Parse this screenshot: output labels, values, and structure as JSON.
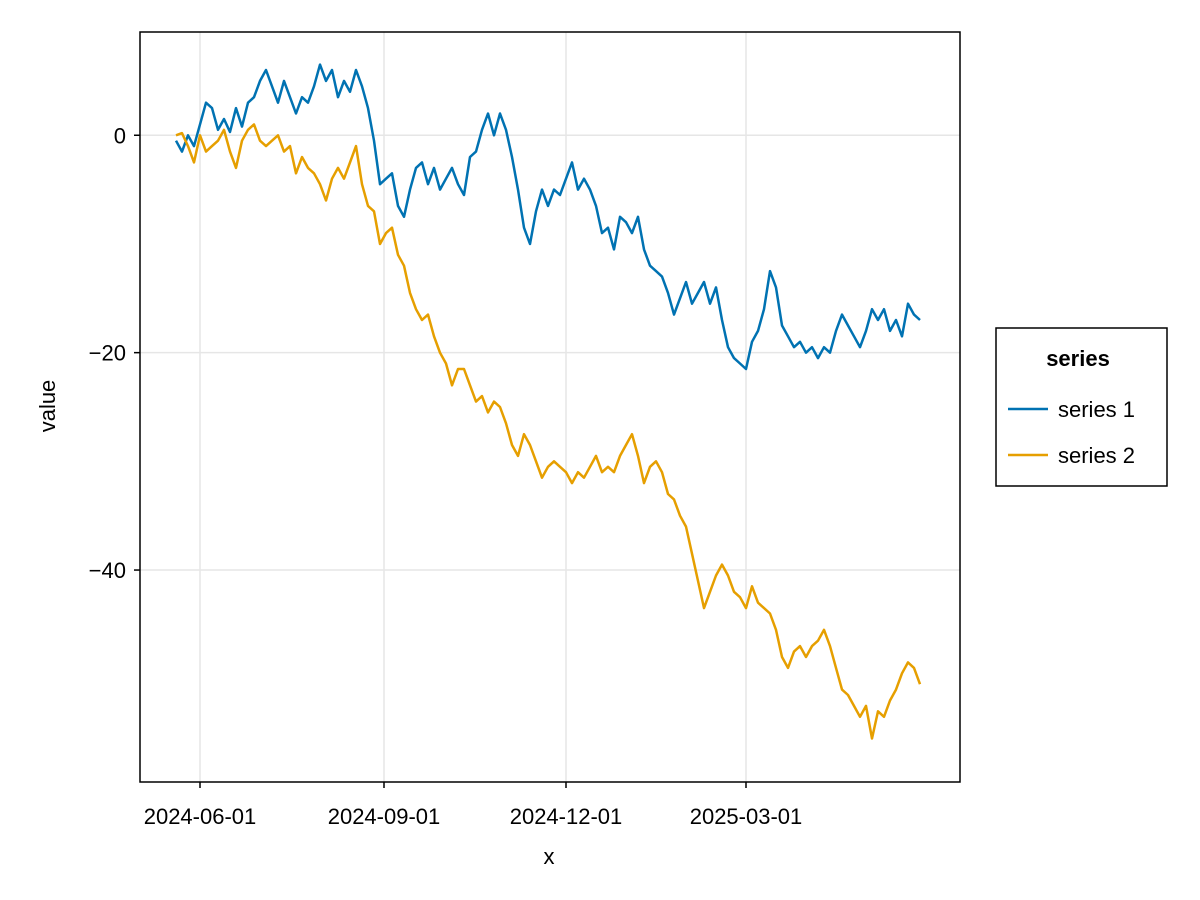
{
  "chart_data": {
    "type": "line",
    "title": "",
    "xlabel": "x",
    "ylabel": "value",
    "x_type": "date",
    "xlim": [
      "2024-05-02",
      "2025-06-16"
    ],
    "ylim": [
      -59.5,
      9.5
    ],
    "x_ticks": [
      "2024-06-01",
      "2024-09-01",
      "2024-12-01",
      "2025-03-01"
    ],
    "y_ticks": [
      0,
      -20,
      -40
    ],
    "y_tick_labels": [
      "0",
      "−20",
      "−40"
    ],
    "grid": true,
    "legend": {
      "title": "series",
      "placement": "right"
    },
    "series": [
      {
        "name": "series 1",
        "color": "#0072b2",
        "points": [
          [
            "2024-05-20",
            -0.5
          ],
          [
            "2024-05-23",
            -1.5
          ],
          [
            "2024-05-26",
            0.0
          ],
          [
            "2024-05-29",
            -1.0
          ],
          [
            "2024-06-01",
            1.0
          ],
          [
            "2024-06-04",
            3.0
          ],
          [
            "2024-06-07",
            2.5
          ],
          [
            "2024-06-10",
            0.5
          ],
          [
            "2024-06-13",
            1.5
          ],
          [
            "2024-06-16",
            0.3
          ],
          [
            "2024-06-19",
            2.5
          ],
          [
            "2024-06-22",
            0.8
          ],
          [
            "2024-06-25",
            3.0
          ],
          [
            "2024-06-28",
            3.5
          ],
          [
            "2024-07-01",
            5.0
          ],
          [
            "2024-07-04",
            6.0
          ],
          [
            "2024-07-07",
            4.5
          ],
          [
            "2024-07-10",
            3.0
          ],
          [
            "2024-07-13",
            5.0
          ],
          [
            "2024-07-16",
            3.5
          ],
          [
            "2024-07-19",
            2.0
          ],
          [
            "2024-07-22",
            3.5
          ],
          [
            "2024-07-25",
            3.0
          ],
          [
            "2024-07-28",
            4.5
          ],
          [
            "2024-07-31",
            6.5
          ],
          [
            "2024-08-03",
            5.0
          ],
          [
            "2024-08-06",
            6.0
          ],
          [
            "2024-08-09",
            3.5
          ],
          [
            "2024-08-12",
            5.0
          ],
          [
            "2024-08-15",
            4.0
          ],
          [
            "2024-08-18",
            6.0
          ],
          [
            "2024-08-21",
            4.5
          ],
          [
            "2024-08-24",
            2.5
          ],
          [
            "2024-08-27",
            -0.5
          ],
          [
            "2024-08-30",
            -4.5
          ],
          [
            "2024-09-02",
            -4.0
          ],
          [
            "2024-09-05",
            -3.5
          ],
          [
            "2024-09-08",
            -6.5
          ],
          [
            "2024-09-11",
            -7.5
          ],
          [
            "2024-09-14",
            -5.0
          ],
          [
            "2024-09-17",
            -3.0
          ],
          [
            "2024-09-20",
            -2.5
          ],
          [
            "2024-09-23",
            -4.5
          ],
          [
            "2024-09-26",
            -3.0
          ],
          [
            "2024-09-29",
            -5.0
          ],
          [
            "2024-10-02",
            -4.0
          ],
          [
            "2024-10-05",
            -3.0
          ],
          [
            "2024-10-08",
            -4.5
          ],
          [
            "2024-10-11",
            -5.5
          ],
          [
            "2024-10-14",
            -2.0
          ],
          [
            "2024-10-17",
            -1.5
          ],
          [
            "2024-10-20",
            0.5
          ],
          [
            "2024-10-23",
            2.0
          ],
          [
            "2024-10-26",
            0.0
          ],
          [
            "2024-10-29",
            2.0
          ],
          [
            "2024-11-01",
            0.5
          ],
          [
            "2024-11-04",
            -2.0
          ],
          [
            "2024-11-07",
            -5.0
          ],
          [
            "2024-11-10",
            -8.5
          ],
          [
            "2024-11-13",
            -10.0
          ],
          [
            "2024-11-16",
            -7.0
          ],
          [
            "2024-11-19",
            -5.0
          ],
          [
            "2024-11-22",
            -6.5
          ],
          [
            "2024-11-25",
            -5.0
          ],
          [
            "2024-11-28",
            -5.5
          ],
          [
            "2024-12-01",
            -4.0
          ],
          [
            "2024-12-04",
            -2.5
          ],
          [
            "2024-12-07",
            -5.0
          ],
          [
            "2024-12-10",
            -4.0
          ],
          [
            "2024-12-13",
            -5.0
          ],
          [
            "2024-12-16",
            -6.5
          ],
          [
            "2024-12-19",
            -9.0
          ],
          [
            "2024-12-22",
            -8.5
          ],
          [
            "2024-12-25",
            -10.5
          ],
          [
            "2024-12-28",
            -7.5
          ],
          [
            "2024-12-31",
            -8.0
          ],
          [
            "2025-01-03",
            -9.0
          ],
          [
            "2025-01-06",
            -7.5
          ],
          [
            "2025-01-09",
            -10.5
          ],
          [
            "2025-01-12",
            -12.0
          ],
          [
            "2025-01-15",
            -12.5
          ],
          [
            "2025-01-18",
            -13.0
          ],
          [
            "2025-01-21",
            -14.5
          ],
          [
            "2025-01-24",
            -16.5
          ],
          [
            "2025-01-27",
            -15.0
          ],
          [
            "2025-01-30",
            -13.5
          ],
          [
            "2025-02-02",
            -15.5
          ],
          [
            "2025-02-05",
            -14.5
          ],
          [
            "2025-02-08",
            -13.5
          ],
          [
            "2025-02-11",
            -15.5
          ],
          [
            "2025-02-14",
            -14.0
          ],
          [
            "2025-02-17",
            -17.0
          ],
          [
            "2025-02-20",
            -19.5
          ],
          [
            "2025-02-23",
            -20.5
          ],
          [
            "2025-02-26",
            -21.0
          ],
          [
            "2025-03-01",
            -21.5
          ],
          [
            "2025-03-04",
            -19.0
          ],
          [
            "2025-03-07",
            -18.0
          ],
          [
            "2025-03-10",
            -16.0
          ],
          [
            "2025-03-13",
            -12.5
          ],
          [
            "2025-03-16",
            -14.0
          ],
          [
            "2025-03-19",
            -17.5
          ],
          [
            "2025-03-22",
            -18.5
          ],
          [
            "2025-03-25",
            -19.5
          ],
          [
            "2025-03-28",
            -19.0
          ],
          [
            "2025-03-31",
            -20.0
          ],
          [
            "2025-04-03",
            -19.5
          ],
          [
            "2025-04-06",
            -20.5
          ],
          [
            "2025-04-09",
            -19.5
          ],
          [
            "2025-04-12",
            -20.0
          ],
          [
            "2025-04-15",
            -18.0
          ],
          [
            "2025-04-18",
            -16.5
          ],
          [
            "2025-04-21",
            -17.5
          ],
          [
            "2025-04-24",
            -18.5
          ],
          [
            "2025-04-27",
            -19.5
          ],
          [
            "2025-04-30",
            -18.0
          ],
          [
            "2025-05-03",
            -16.0
          ],
          [
            "2025-05-06",
            -17.0
          ],
          [
            "2025-05-09",
            -16.0
          ],
          [
            "2025-05-12",
            -18.0
          ],
          [
            "2025-05-15",
            -17.0
          ],
          [
            "2025-05-18",
            -18.5
          ],
          [
            "2025-05-21",
            -15.5
          ],
          [
            "2025-05-24",
            -16.5
          ],
          [
            "2025-05-27",
            -17.0
          ]
        ]
      },
      {
        "name": "series 2",
        "color": "#e69f00",
        "points": [
          [
            "2024-05-20",
            0.0
          ],
          [
            "2024-05-23",
            0.2
          ],
          [
            "2024-05-26",
            -1.0
          ],
          [
            "2024-05-29",
            -2.5
          ],
          [
            "2024-06-01",
            0.0
          ],
          [
            "2024-06-04",
            -1.5
          ],
          [
            "2024-06-07",
            -1.0
          ],
          [
            "2024-06-10",
            -0.5
          ],
          [
            "2024-06-13",
            0.5
          ],
          [
            "2024-06-16",
            -1.5
          ],
          [
            "2024-06-19",
            -3.0
          ],
          [
            "2024-06-22",
            -0.5
          ],
          [
            "2024-06-25",
            0.5
          ],
          [
            "2024-06-28",
            1.0
          ],
          [
            "2024-07-01",
            -0.5
          ],
          [
            "2024-07-04",
            -1.0
          ],
          [
            "2024-07-07",
            -0.5
          ],
          [
            "2024-07-10",
            0.0
          ],
          [
            "2024-07-13",
            -1.5
          ],
          [
            "2024-07-16",
            -1.0
          ],
          [
            "2024-07-19",
            -3.5
          ],
          [
            "2024-07-22",
            -2.0
          ],
          [
            "2024-07-25",
            -3.0
          ],
          [
            "2024-07-28",
            -3.5
          ],
          [
            "2024-07-31",
            -4.5
          ],
          [
            "2024-08-03",
            -6.0
          ],
          [
            "2024-08-06",
            -4.0
          ],
          [
            "2024-08-09",
            -3.0
          ],
          [
            "2024-08-12",
            -4.0
          ],
          [
            "2024-08-15",
            -2.5
          ],
          [
            "2024-08-18",
            -1.0
          ],
          [
            "2024-08-21",
            -4.5
          ],
          [
            "2024-08-24",
            -6.5
          ],
          [
            "2024-08-27",
            -7.0
          ],
          [
            "2024-08-30",
            -10.0
          ],
          [
            "2024-09-02",
            -9.0
          ],
          [
            "2024-09-05",
            -8.5
          ],
          [
            "2024-09-08",
            -11.0
          ],
          [
            "2024-09-11",
            -12.0
          ],
          [
            "2024-09-14",
            -14.5
          ],
          [
            "2024-09-17",
            -16.0
          ],
          [
            "2024-09-20",
            -17.0
          ],
          [
            "2024-09-23",
            -16.5
          ],
          [
            "2024-09-26",
            -18.5
          ],
          [
            "2024-09-29",
            -20.0
          ],
          [
            "2024-10-02",
            -21.0
          ],
          [
            "2024-10-05",
            -23.0
          ],
          [
            "2024-10-08",
            -21.5
          ],
          [
            "2024-10-11",
            -21.5
          ],
          [
            "2024-10-14",
            -23.0
          ],
          [
            "2024-10-17",
            -24.5
          ],
          [
            "2024-10-20",
            -24.0
          ],
          [
            "2024-10-23",
            -25.5
          ],
          [
            "2024-10-26",
            -24.5
          ],
          [
            "2024-10-29",
            -25.0
          ],
          [
            "2024-11-01",
            -26.5
          ],
          [
            "2024-11-04",
            -28.5
          ],
          [
            "2024-11-07",
            -29.5
          ],
          [
            "2024-11-10",
            -27.5
          ],
          [
            "2024-11-13",
            -28.5
          ],
          [
            "2024-11-16",
            -30.0
          ],
          [
            "2024-11-19",
            -31.5
          ],
          [
            "2024-11-22",
            -30.5
          ],
          [
            "2024-11-25",
            -30.0
          ],
          [
            "2024-11-28",
            -30.5
          ],
          [
            "2024-12-01",
            -31.0
          ],
          [
            "2024-12-04",
            -32.0
          ],
          [
            "2024-12-07",
            -31.0
          ],
          [
            "2024-12-10",
            -31.5
          ],
          [
            "2024-12-13",
            -30.5
          ],
          [
            "2024-12-16",
            -29.5
          ],
          [
            "2024-12-19",
            -31.0
          ],
          [
            "2024-12-22",
            -30.5
          ],
          [
            "2024-12-25",
            -31.0
          ],
          [
            "2024-12-28",
            -29.5
          ],
          [
            "2024-12-31",
            -28.5
          ],
          [
            "2025-01-03",
            -27.5
          ],
          [
            "2025-01-06",
            -29.5
          ],
          [
            "2025-01-09",
            -32.0
          ],
          [
            "2025-01-12",
            -30.5
          ],
          [
            "2025-01-15",
            -30.0
          ],
          [
            "2025-01-18",
            -31.0
          ],
          [
            "2025-01-21",
            -33.0
          ],
          [
            "2025-01-24",
            -33.5
          ],
          [
            "2025-01-27",
            -35.0
          ],
          [
            "2025-01-30",
            -36.0
          ],
          [
            "2025-02-02",
            -38.5
          ],
          [
            "2025-02-05",
            -41.0
          ],
          [
            "2025-02-08",
            -43.5
          ],
          [
            "2025-02-11",
            -42.0
          ],
          [
            "2025-02-14",
            -40.5
          ],
          [
            "2025-02-17",
            -39.5
          ],
          [
            "2025-02-20",
            -40.5
          ],
          [
            "2025-02-23",
            -42.0
          ],
          [
            "2025-02-26",
            -42.5
          ],
          [
            "2025-03-01",
            -43.5
          ],
          [
            "2025-03-04",
            -41.5
          ],
          [
            "2025-03-07",
            -43.0
          ],
          [
            "2025-03-10",
            -43.5
          ],
          [
            "2025-03-13",
            -44.0
          ],
          [
            "2025-03-16",
            -45.5
          ],
          [
            "2025-03-19",
            -48.0
          ],
          [
            "2025-03-22",
            -49.0
          ],
          [
            "2025-03-25",
            -47.5
          ],
          [
            "2025-03-28",
            -47.0
          ],
          [
            "2025-03-31",
            -48.0
          ],
          [
            "2025-04-03",
            -47.0
          ],
          [
            "2025-04-06",
            -46.5
          ],
          [
            "2025-04-09",
            -45.5
          ],
          [
            "2025-04-12",
            -47.0
          ],
          [
            "2025-04-15",
            -49.0
          ],
          [
            "2025-04-18",
            -51.0
          ],
          [
            "2025-04-21",
            -51.5
          ],
          [
            "2025-04-24",
            -52.5
          ],
          [
            "2025-04-27",
            -53.5
          ],
          [
            "2025-04-30",
            -52.5
          ],
          [
            "2025-05-03",
            -55.5
          ],
          [
            "2025-05-06",
            -53.0
          ],
          [
            "2025-05-09",
            -53.5
          ],
          [
            "2025-05-12",
            -52.0
          ],
          [
            "2025-05-15",
            -51.0
          ],
          [
            "2025-05-18",
            -49.5
          ],
          [
            "2025-05-21",
            -48.5
          ],
          [
            "2025-05-24",
            -49.0
          ],
          [
            "2025-05-27",
            -50.5
          ]
        ]
      }
    ]
  }
}
